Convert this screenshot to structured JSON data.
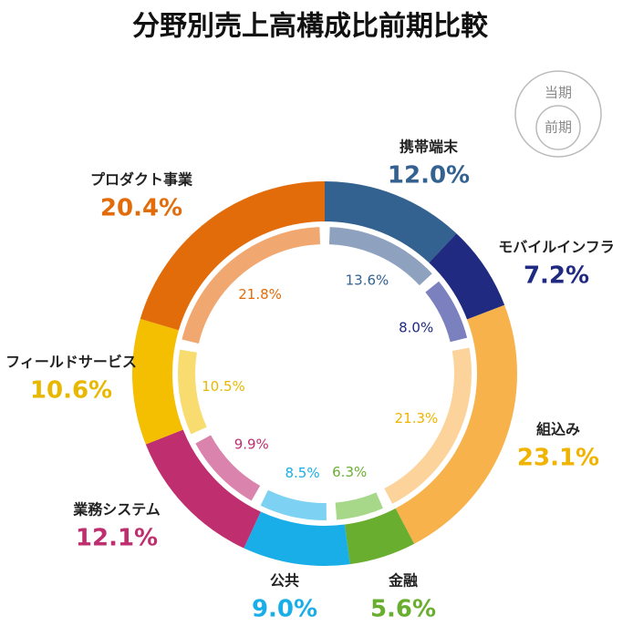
{
  "chart_data": {
    "type": "donut",
    "title": "分野別売上高構成比前期比較",
    "categories": [
      "携帯端末",
      "モバイルインフラ",
      "組込み",
      "金融",
      "公共",
      "業務システム",
      "フィールドサービス",
      "プロダクト事業"
    ],
    "series": [
      {
        "name": "当期",
        "values": [
          12.0,
          7.2,
          23.1,
          5.6,
          9.0,
          12.1,
          10.6,
          20.4
        ],
        "value_labels": [
          "12.0%",
          "7.2%",
          "23.1%",
          "5.6%",
          "9.0%",
          "12.1%",
          "10.6%",
          "20.4%"
        ],
        "colors": [
          "#336190",
          "#1f2a80",
          "#f7b24c",
          "#6aae30",
          "#1aaee8",
          "#bf2f70",
          "#f3bf00",
          "#e36c0a"
        ],
        "label_colors": [
          "#336190",
          "#1f2a80",
          "#f0b400",
          "#6aae30",
          "#1aaee8",
          "#bf2f70",
          "#e8b800",
          "#e36c0a"
        ]
      },
      {
        "name": "前期",
        "values": [
          13.6,
          8.0,
          21.3,
          6.3,
          8.5,
          9.9,
          10.5,
          21.8
        ],
        "value_labels": [
          "13.6%",
          "8.0%",
          "21.3%",
          "6.3%",
          "8.5%",
          "9.9%",
          "10.5%",
          "21.8%"
        ],
        "colors": [
          "#8ea2c0",
          "#7b80bf",
          "#fbd39b",
          "#a7d788",
          "#7dd2f3",
          "#d983ad",
          "#f8dc70",
          "#f0a870"
        ],
        "label_colors": [
          "#336190",
          "#1f2a80",
          "#f0b400",
          "#6aae30",
          "#1aaee8",
          "#bf2f70",
          "#e8b800",
          "#e36c0a"
        ]
      }
    ]
  }
}
